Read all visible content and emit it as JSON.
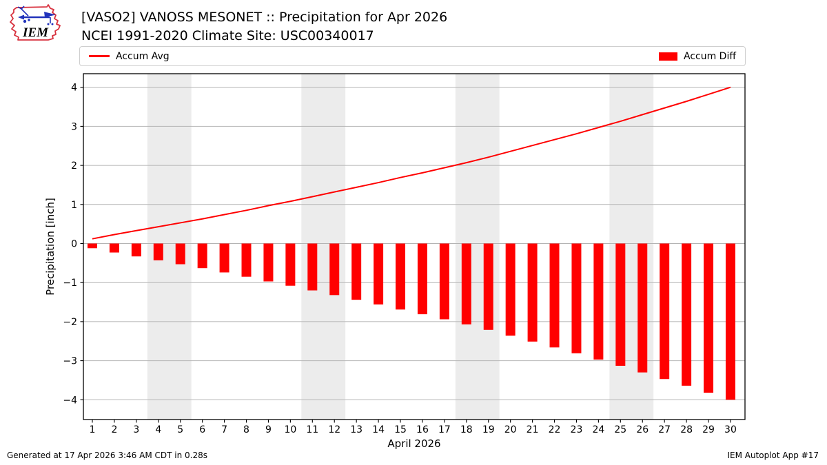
{
  "header": {
    "logo": {
      "text": "IEM"
    }
  },
  "chart_data": {
    "type": "line+bar",
    "title": "[VASO2] VANOSS MESONET :: Precipitation for Apr 2026",
    "subtitle": "NCEI 1991-2020 Climate Site: USC00340017",
    "xlabel": "April 2026",
    "ylabel": "Precipitation [inch]",
    "x": [
      1,
      2,
      3,
      4,
      5,
      6,
      7,
      8,
      9,
      10,
      11,
      12,
      13,
      14,
      15,
      16,
      17,
      18,
      19,
      20,
      21,
      22,
      23,
      24,
      25,
      26,
      27,
      28,
      29,
      30
    ],
    "series": [
      {
        "name": "Accum Avg",
        "type": "line",
        "color": "#ff0000",
        "values": [
          0.12,
          0.23,
          0.33,
          0.43,
          0.53,
          0.63,
          0.74,
          0.85,
          0.97,
          1.08,
          1.2,
          1.32,
          1.44,
          1.56,
          1.69,
          1.81,
          1.94,
          2.07,
          2.21,
          2.36,
          2.51,
          2.66,
          2.81,
          2.97,
          3.13,
          3.3,
          3.47,
          3.64,
          3.82,
          4.0
        ]
      },
      {
        "name": "Accum Diff",
        "type": "bar",
        "color": "#ff0000",
        "values": [
          -0.12,
          -0.23,
          -0.33,
          -0.43,
          -0.53,
          -0.63,
          -0.74,
          -0.85,
          -0.97,
          -1.08,
          -1.2,
          -1.32,
          -1.44,
          -1.56,
          -1.69,
          -1.81,
          -1.94,
          -2.07,
          -2.21,
          -2.36,
          -2.51,
          -2.66,
          -2.81,
          -2.97,
          -3.13,
          -3.3,
          -3.47,
          -3.64,
          -3.82,
          -4.0
        ]
      }
    ],
    "ylim": [
      -4.45,
      4.35
    ],
    "yticks": [
      -4,
      -3,
      -2,
      -1,
      0,
      1,
      2,
      3,
      4
    ],
    "grid": "horizontal",
    "legend_position": "top",
    "weekend_bands": [
      [
        3.5,
        5.5
      ],
      [
        10.5,
        12.5
      ],
      [
        17.5,
        19.5
      ],
      [
        24.5,
        26.5
      ]
    ]
  },
  "footer": {
    "left": "Generated at 17 Apr 2026 3:46 AM CDT in 0.28s",
    "right": "IEM Autoplot App #17"
  },
  "colors": {
    "accent_red": "#ff0000",
    "grid_line": "#b4b4b4",
    "weekend_band": "#ececec",
    "spine": "#000000",
    "logo_red": "#d8323f",
    "logo_blue": "#2233bb"
  }
}
